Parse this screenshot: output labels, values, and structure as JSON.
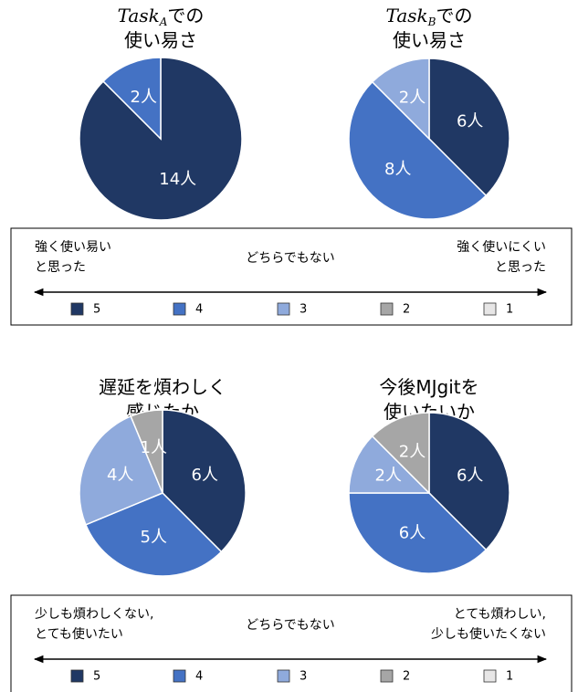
{
  "chart_data": [
    {
      "type": "pie",
      "title_var": "Task",
      "title_sub": "A",
      "title": [
        "での",
        "使い易さ"
      ],
      "categories": [
        "5",
        "4",
        "3",
        "2",
        "1"
      ],
      "values": [
        14,
        2,
        0,
        0,
        0
      ],
      "value_labels": [
        "14人",
        "2人",
        null,
        null,
        null
      ],
      "colors": [
        "#203864",
        "#4472c4",
        "#8faadc",
        "#a6a6a6",
        "#e7e6e6"
      ]
    },
    {
      "type": "pie",
      "title_var": "Task",
      "title_sub": "B",
      "title": [
        "での",
        "使い易さ"
      ],
      "categories": [
        "5",
        "4",
        "3",
        "2",
        "1"
      ],
      "values": [
        6,
        8,
        2,
        0,
        0
      ],
      "value_labels": [
        "6人",
        "8人",
        "2人",
        null,
        null
      ],
      "colors": [
        "#203864",
        "#4472c4",
        "#8faadc",
        "#a6a6a6",
        "#e7e6e6"
      ]
    },
    {
      "type": "pie",
      "title": [
        "遅延を煩わしく",
        "感じたか"
      ],
      "categories": [
        "5",
        "4",
        "3",
        "2",
        "1"
      ],
      "values": [
        6,
        5,
        4,
        1,
        0
      ],
      "value_labels": [
        "6人",
        "5人",
        "4人",
        "1人",
        null
      ],
      "colors": [
        "#203864",
        "#4472c4",
        "#8faadc",
        "#a6a6a6",
        "#e7e6e6"
      ]
    },
    {
      "type": "pie",
      "title": [
        "今後MJgitを",
        "使いたいか"
      ],
      "categories": [
        "5",
        "4",
        "3",
        "2",
        "1"
      ],
      "values": [
        6,
        6,
        2,
        2,
        0
      ],
      "value_labels": [
        "6人",
        "6人",
        "2人",
        "2人",
        null
      ],
      "colors": [
        "#203864",
        "#4472c4",
        "#8faadc",
        "#a6a6a6",
        "#e7e6e6"
      ]
    }
  ],
  "scales": [
    {
      "left": [
        "強く使い易い",
        "と思った"
      ],
      "center": "どちらでもない",
      "right": [
        "強く使いにくい",
        "と思った"
      ]
    },
    {
      "left": [
        "少しも煩わしくない,",
        "とても使いたい"
      ],
      "center": "どちらでもない",
      "right": [
        "とても煩わしい,",
        "少しも使いたくない"
      ]
    }
  ]
}
